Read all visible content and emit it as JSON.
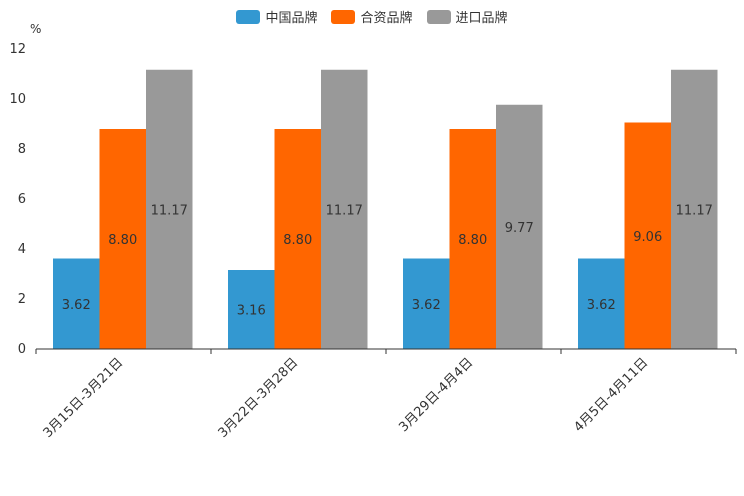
{
  "chart_data": {
    "type": "bar",
    "title": "",
    "ylabel": "%",
    "xlabel": "",
    "ylim": [
      0,
      12
    ],
    "yticks": [
      0,
      2,
      4,
      6,
      8,
      10,
      12
    ],
    "categories": [
      "3月15日-3月21日",
      "3月22日-3月28日",
      "3月29日-4月4日",
      "4月5日-4月11日"
    ],
    "series": [
      {
        "name": "中国品牌",
        "color": "#3398d1",
        "values": [
          3.62,
          3.16,
          3.62,
          3.62
        ],
        "labels": [
          "3.62",
          "3.16",
          "3.62",
          "3.62"
        ]
      },
      {
        "name": "合资品牌",
        "color": "#ff6600",
        "values": [
          8.8,
          8.8,
          8.8,
          9.06
        ],
        "labels": [
          "8.80",
          "8.80",
          "8.80",
          "9.06"
        ]
      },
      {
        "name": "进口品牌",
        "color": "#999999",
        "values": [
          11.17,
          11.17,
          9.77,
          11.17
        ],
        "labels": [
          "11.17",
          "11.17",
          "9.77",
          "11.17"
        ]
      }
    ],
    "legend_position": "top-center"
  }
}
